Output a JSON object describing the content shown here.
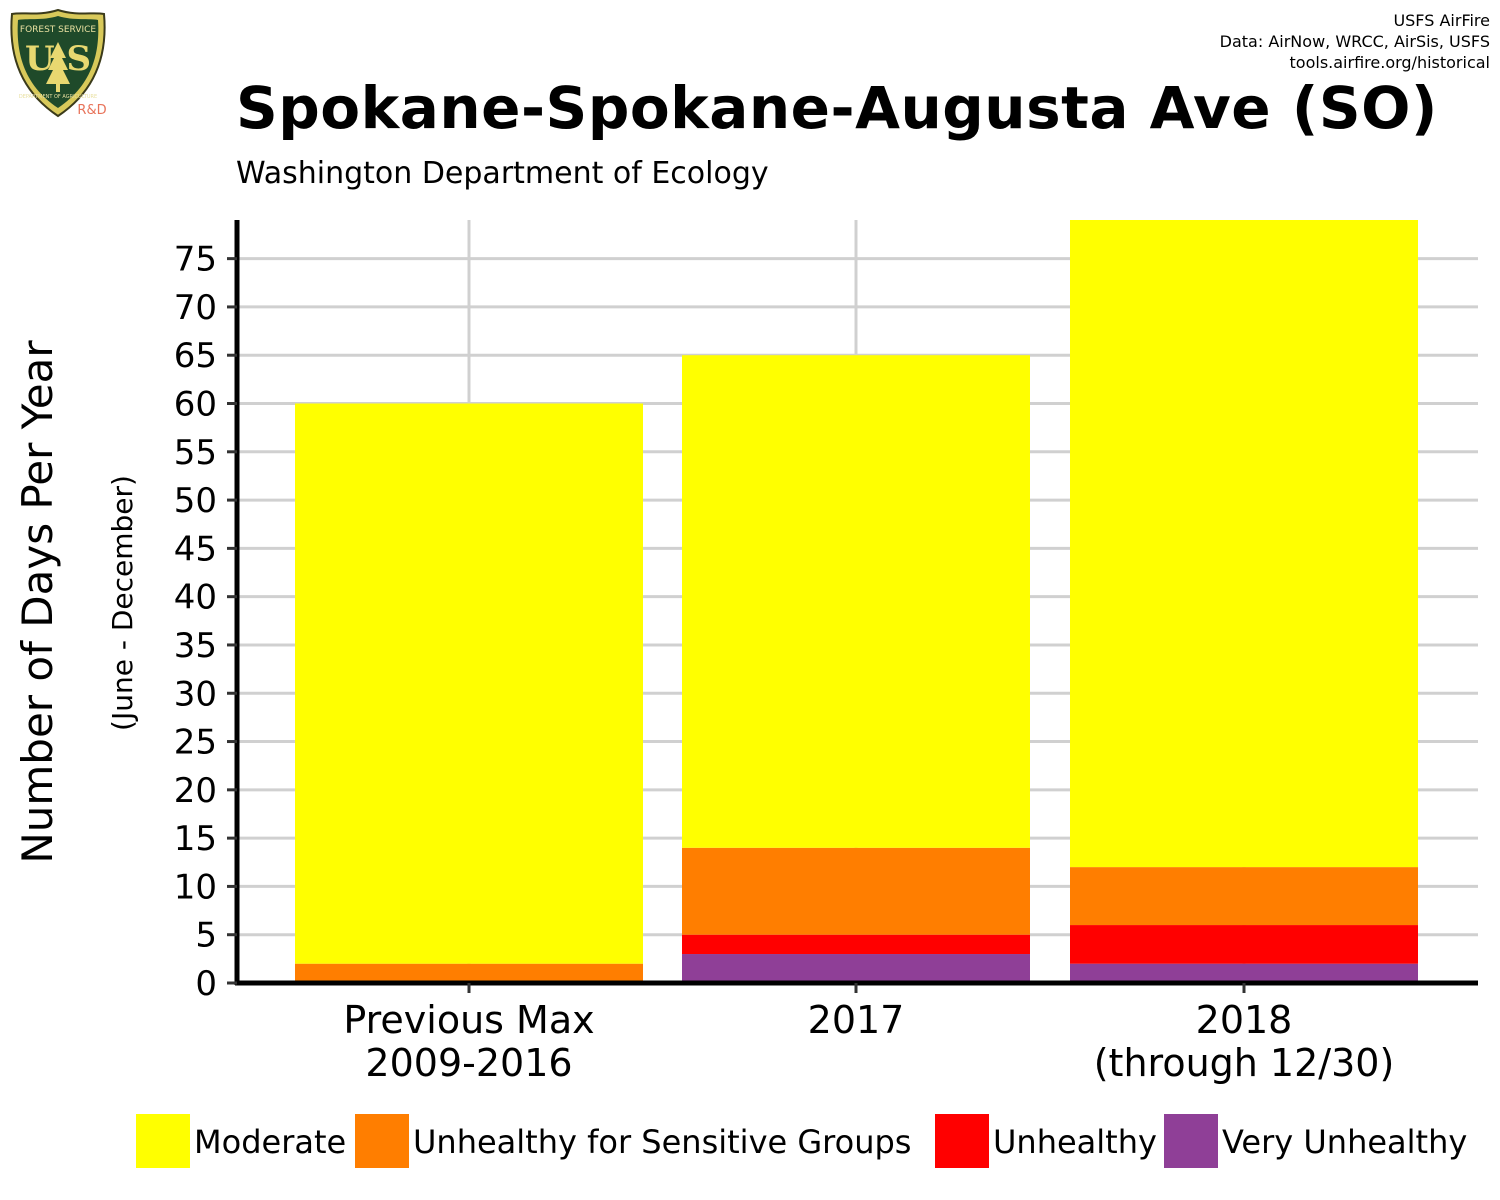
{
  "logo": {
    "top_text": "FOREST SERVICE",
    "letters": "U S",
    "bottom_text": "DEPARTMENT OF AGRICULTURE",
    "rd": "R&D"
  },
  "credits": {
    "line1": "USFS AirFire",
    "line2": "Data: AirNow, WRCC, AirSis, USFS",
    "line3": "tools.airfire.org/historical"
  },
  "title": "Spokane-Spokane-Augusta Ave (SO)",
  "subtitle": "Washington Department of Ecology",
  "chart_data": {
    "type": "bar",
    "stacked": true,
    "title": "Spokane-Spokane-Augusta Ave (SO)",
    "subtitle": "Washington Department of Ecology",
    "ylabel": "Number of Days Per Year",
    "ylabel_sub": "(June - December)",
    "xlabel": "",
    "categories": [
      [
        "Previous Max",
        "2009-2016"
      ],
      [
        "2017"
      ],
      [
        "2018",
        "(through 12/30)"
      ]
    ],
    "ylim": [
      0,
      79
    ],
    "yticks": [
      0,
      5,
      10,
      15,
      20,
      25,
      30,
      35,
      40,
      45,
      50,
      55,
      60,
      65,
      70,
      75
    ],
    "grid": true,
    "legend_position": "bottom",
    "series": [
      {
        "name": "Very Unhealthy",
        "color": "#8f3f97",
        "values": [
          0,
          3,
          2
        ]
      },
      {
        "name": "Unhealthy",
        "color": "#ff0000",
        "values": [
          0,
          2,
          4
        ]
      },
      {
        "name": "Unhealthy for Sensitive Groups",
        "color": "#ff7e00",
        "values": [
          2,
          9,
          6
        ]
      },
      {
        "name": "Moderate",
        "color": "#ffff00",
        "values": [
          58,
          51,
          67
        ]
      }
    ],
    "legend_order": [
      "Moderate",
      "Unhealthy for Sensitive Groups",
      "Unhealthy",
      "Very Unhealthy"
    ]
  }
}
